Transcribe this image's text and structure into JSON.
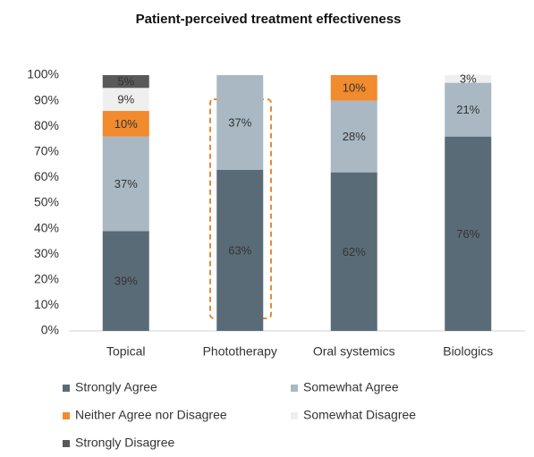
{
  "chart_data": {
    "type": "stacked_bar",
    "title": "Patient-perceived treatment effectiveness",
    "categories": [
      "Topical",
      "Phototherapy",
      "Oral systemics",
      "Biologics"
    ],
    "series": [
      {
        "name": "Strongly Agree",
        "color": "#5a6b78",
        "values": [
          39,
          63,
          62,
          76
        ],
        "value_labels": [
          "39%",
          "63%",
          "62%",
          "76%"
        ]
      },
      {
        "name": "Somewhat Agree",
        "color": "#a9b8c3",
        "values": [
          37,
          37,
          28,
          21
        ],
        "value_labels": [
          "37%",
          "37%",
          "28%",
          "21%"
        ]
      },
      {
        "name": "Neither Agree nor Disagree",
        "color": "#f28a2e",
        "values": [
          10,
          0,
          10,
          0
        ],
        "value_labels": [
          "10%",
          null,
          "10%",
          null
        ]
      },
      {
        "name": "Somewhat Disagree",
        "color": "#efefef",
        "values": [
          9,
          0,
          0,
          3
        ],
        "value_labels": [
          "9%",
          null,
          null,
          "3%"
        ]
      },
      {
        "name": "Strongly Disagree",
        "color": "#595959",
        "values": [
          5,
          0,
          0,
          0
        ],
        "value_labels": [
          "5%",
          null,
          null,
          null
        ]
      }
    ],
    "ylim": [
      0,
      100
    ],
    "yticks": [
      {
        "value": 0,
        "label": "0%"
      },
      {
        "value": 10,
        "label": "10%"
      },
      {
        "value": 20,
        "label": "20%"
      },
      {
        "value": 30,
        "label": "30%"
      },
      {
        "value": 40,
        "label": "40%"
      },
      {
        "value": 50,
        "label": "50%"
      },
      {
        "value": 60,
        "label": "60%"
      },
      {
        "value": 70,
        "label": "70%"
      },
      {
        "value": 80,
        "label": "80%"
      },
      {
        "value": 90,
        "label": "90%"
      },
      {
        "value": 100,
        "label": "100%"
      }
    ],
    "grid": false,
    "legend": "bottom"
  }
}
